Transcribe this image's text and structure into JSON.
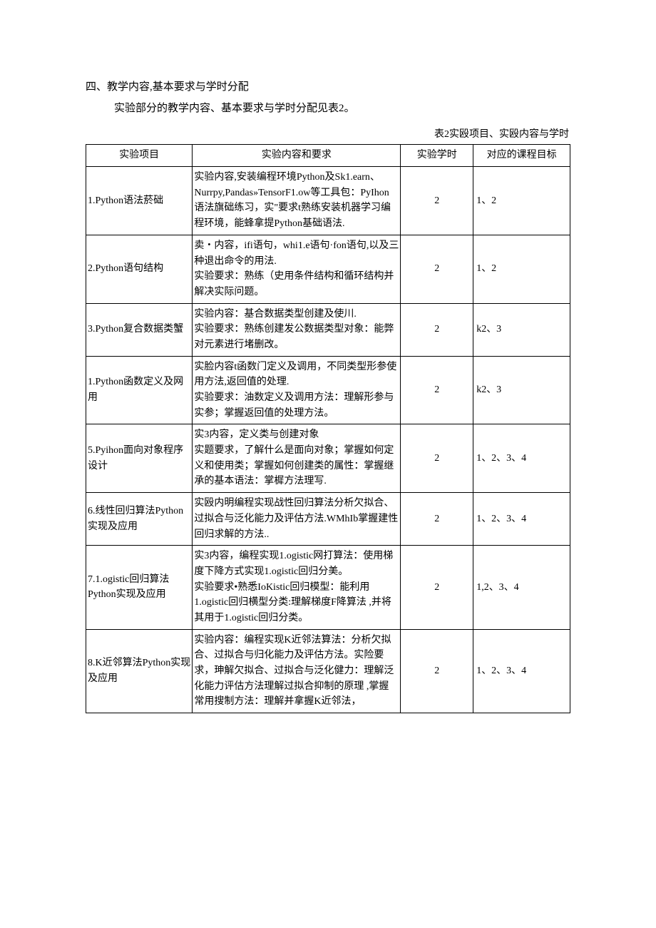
{
  "heading": "四、教学内容,基本要求与学时分配",
  "intro": "实验部分的教学内容、基本要求与学时分配见表2。",
  "tableCaption": "表2实殴项目、实殴内容与学时",
  "headers": {
    "project": "实验项目",
    "content": "实验内容和要求",
    "hours": "实验学时",
    "target": "对应的课程目标"
  },
  "rows": [
    {
      "project": "1.Python语法菸础",
      "content": "实验内容,安装编程环境Python及Sk1.earn、Nurrpy,Pandas»TensorF1.ow等工具包：PyIhon语法旗础练习，实\"要求t熟练安装机器学习编程环境，能蜂拿提Python基础语法.",
      "hours": "2",
      "target": "1、2"
    },
    {
      "project": "2.Python语句结构",
      "content": "卖・内容，ifi语句，whi1.e语句·fon语句,以及三种退出命令的用法.\n实验要求：熟练（史用条件结构和循环结构并解决实际问题。",
      "hours": "2",
      "target": "1、2"
    },
    {
      "project": "3.Python复合数据类蟹",
      "content": "实验内容：基合数据类型创建及使川.\n实验要求：熟练创建发公数据类型对象：能弊对元素进行堵删改。",
      "hours": "2",
      "target": "k2、3"
    },
    {
      "project": "1.Python函数定义及网用",
      "content": "实脸内容t函数门定义及调用，不同类型形参使用方法,返回值的处理.\n实验要求：油数定义及调用方法：理解形参与实参；掌握返回值的处理方法。",
      "hours": "2",
      "target": "k2、3"
    },
    {
      "project": "5.Pyihon面向对象程序设计",
      "content": "实3内容，定义类与创建对象\n实题要求，了解什么是面向对象；掌握如何定义和使用类；掌握如何创建类的属性：掌握继承的基本语法：掌樨方法理写.",
      "hours": "2",
      "target": "1、2、3、4"
    },
    {
      "project": "6.线性回归算法Python实现及应用",
      "content": "实殴内明编程实现战性回归算法分析欠拟合、过拟合与泛化能力及评估方法.WMhIb掌握建性回归求解的方法..",
      "hours": "2",
      "target": "1、2、3、4"
    },
    {
      "project": "7.1.ogistic回归算法Python实现及应用",
      "content": "实3内容，编程实现1.ogistic网打算法：使用梯度下降方式实现1.ogistic回归分美。\n实验要求•熟悉IoKistic回归模型：能利用1.ogistic回归横型分类:理解梯度F降算法 ,并将其用于1.ogistic回归分类。",
      "hours": "2",
      "target": "1,2、3、4"
    },
    {
      "project": "8.K近邻算法Python实现及应用",
      "content": "实验内容：编程实现K近邻法算法：分析欠拟合、过拟合与归化能力及评估方法。实险要求，珅解欠拟合、过拟合与泛化健力：理解泛化能力评估方法理解过拟合抑制的原理 ,掌握常用搜制方法：理解并拿握K近邻法，",
      "hours": "2",
      "target": "1、2、3、4"
    }
  ]
}
